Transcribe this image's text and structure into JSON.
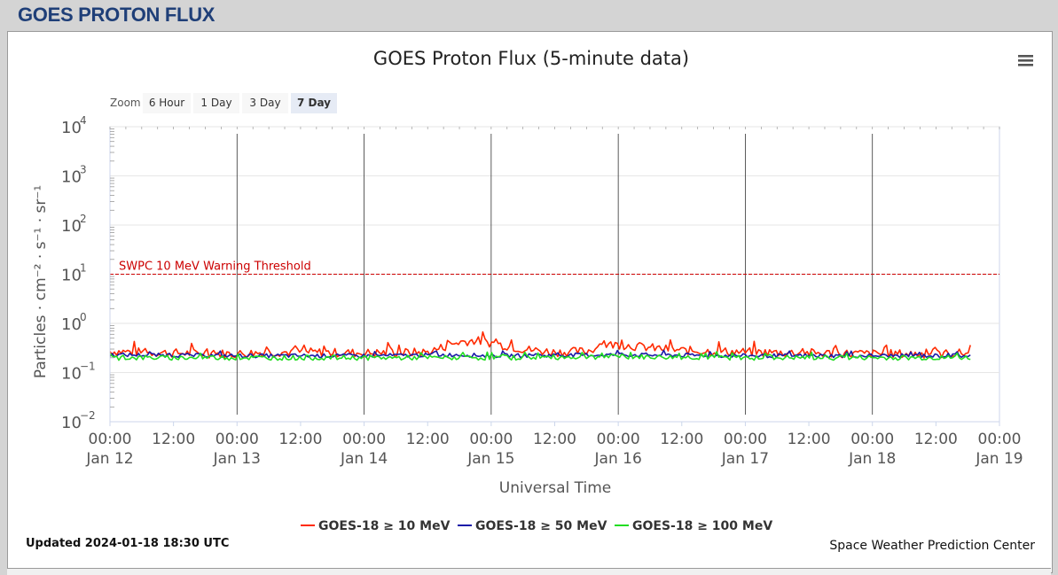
{
  "page_title": "GOES PROTON FLUX",
  "menu_icon": "hamburger-menu-icon",
  "zoom": {
    "label": "Zoom",
    "buttons": [
      "6 Hour",
      "1 Day",
      "3 Day",
      "7 Day"
    ],
    "selected": "7 Day"
  },
  "updated_text": "Updated 2024-01-18 18:30 UTC",
  "credit_text": "Space Weather Prediction Center",
  "colors": {
    "title_blue": "#1f3f78",
    "series_10mev": "#ff2a00",
    "series_50mev": "#1a1aa8",
    "series_100mev": "#22dd22",
    "threshold": "#cc0000"
  },
  "chart_data": {
    "type": "line",
    "title": "GOES Proton Flux (5-minute data)",
    "xlabel": "Universal Time",
    "ylabel": "Particles · cm⁻² · s⁻¹ · sr⁻¹",
    "y_scale": "log",
    "ylim": [
      0.01,
      10000
    ],
    "y_ticks": [
      {
        "value": 0.01,
        "base": "10",
        "exp": "−2"
      },
      {
        "value": 0.1,
        "base": "10",
        "exp": "−1"
      },
      {
        "value": 1,
        "base": "10",
        "exp": "0"
      },
      {
        "value": 10,
        "base": "10",
        "exp": "1"
      },
      {
        "value": 100,
        "base": "10",
        "exp": "2"
      },
      {
        "value": 1000,
        "base": "10",
        "exp": "3"
      },
      {
        "value": 10000,
        "base": "10",
        "exp": "4"
      }
    ],
    "x_range": [
      "2024-01-12 00:00",
      "2024-01-19 00:00"
    ],
    "x_ticks": [
      {
        "t": "2024-01-12 00:00",
        "line1": "00:00",
        "line2": "Jan 12"
      },
      {
        "t": "2024-01-12 12:00",
        "line1": "12:00",
        "line2": ""
      },
      {
        "t": "2024-01-13 00:00",
        "line1": "00:00",
        "line2": "Jan 13"
      },
      {
        "t": "2024-01-13 12:00",
        "line1": "12:00",
        "line2": ""
      },
      {
        "t": "2024-01-14 00:00",
        "line1": "00:00",
        "line2": "Jan 14"
      },
      {
        "t": "2024-01-14 12:00",
        "line1": "12:00",
        "line2": ""
      },
      {
        "t": "2024-01-15 00:00",
        "line1": "00:00",
        "line2": "Jan 15"
      },
      {
        "t": "2024-01-15 12:00",
        "line1": "12:00",
        "line2": ""
      },
      {
        "t": "2024-01-16 00:00",
        "line1": "00:00",
        "line2": "Jan 16"
      },
      {
        "t": "2024-01-16 12:00",
        "line1": "12:00",
        "line2": ""
      },
      {
        "t": "2024-01-17 00:00",
        "line1": "00:00",
        "line2": "Jan 17"
      },
      {
        "t": "2024-01-17 12:00",
        "line1": "12:00",
        "line2": ""
      },
      {
        "t": "2024-01-18 00:00",
        "line1": "00:00",
        "line2": "Jan 18"
      },
      {
        "t": "2024-01-18 12:00",
        "line1": "12:00",
        "line2": ""
      },
      {
        "t": "2024-01-19 00:00",
        "line1": "00:00",
        "line2": "Jan 19"
      }
    ],
    "day_lines": [
      "2024-01-13 00:00",
      "2024-01-14 00:00",
      "2024-01-15 00:00",
      "2024-01-16 00:00",
      "2024-01-17 00:00",
      "2024-01-18 00:00"
    ],
    "threshold": {
      "value": 10,
      "label": "SWPC 10 MeV Warning Threshold"
    },
    "grid": true,
    "legend_position": "bottom-center",
    "series": [
      {
        "name": "GOES-18 ≥ 10 MeV",
        "color": "#ff2a00",
        "x": [
          "2024-01-12 00:00",
          "2024-01-12 12:00",
          "2024-01-13 00:00",
          "2024-01-13 06:00",
          "2024-01-13 12:00",
          "2024-01-14 00:00",
          "2024-01-14 12:00",
          "2024-01-14 15:00",
          "2024-01-14 18:00",
          "2024-01-14 21:00",
          "2024-01-15 00:00",
          "2024-01-15 06:00",
          "2024-01-15 12:00",
          "2024-01-15 18:00",
          "2024-01-15 21:00",
          "2024-01-16 00:00",
          "2024-01-16 06:00",
          "2024-01-16 12:00",
          "2024-01-17 00:00",
          "2024-01-17 12:00",
          "2024-01-18 00:00",
          "2024-01-18 12:00",
          "2024-01-18 18:30"
        ],
        "y": [
          0.27,
          0.25,
          0.24,
          0.26,
          0.26,
          0.25,
          0.26,
          0.33,
          0.42,
          0.45,
          0.4,
          0.3,
          0.26,
          0.27,
          0.36,
          0.37,
          0.32,
          0.28,
          0.26,
          0.25,
          0.24,
          0.24,
          0.25
        ]
      },
      {
        "name": "GOES-18 ≥ 50 MeV",
        "color": "#1a1aa8",
        "x": [
          "2024-01-12 00:00",
          "2024-01-13 00:00",
          "2024-01-14 00:00",
          "2024-01-14 18:00",
          "2024-01-15 00:00",
          "2024-01-16 00:00",
          "2024-01-17 00:00",
          "2024-01-18 00:00",
          "2024-01-18 18:30"
        ],
        "y": [
          0.23,
          0.22,
          0.22,
          0.23,
          0.22,
          0.23,
          0.22,
          0.22,
          0.22
        ]
      },
      {
        "name": "GOES-18 ≥ 100 MeV",
        "color": "#22dd22",
        "x": [
          "2024-01-12 00:00",
          "2024-01-13 00:00",
          "2024-01-14 00:00",
          "2024-01-15 00:00",
          "2024-01-16 00:00",
          "2024-01-17 00:00",
          "2024-01-18 00:00",
          "2024-01-18 18:30"
        ],
        "y": [
          0.2,
          0.2,
          0.2,
          0.2,
          0.21,
          0.2,
          0.2,
          0.2
        ]
      }
    ]
  }
}
